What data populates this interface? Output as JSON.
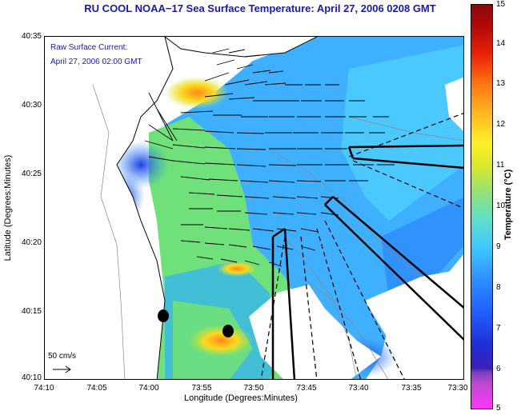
{
  "title": "RU COOL  NOAA−17  Sea Surface Temperature:  April 27, 2006 0208 GMT",
  "annotation": {
    "line1": "Raw Surface Current:",
    "line2": "April 27, 2006 02:00 GMT"
  },
  "axes": {
    "xlabel": "Longitude (Degrees:Minutes)",
    "ylabel": "Latitude (Degrees:Minutes)",
    "xticks": [
      "74:10",
      "74:05",
      "74:00",
      "73:55",
      "73:50",
      "73:45",
      "73:40",
      "73:35",
      "73:30"
    ],
    "yticks": [
      "40:35",
      "40:30",
      "40:25",
      "40:20",
      "40:15",
      "40:10"
    ]
  },
  "scale": {
    "label": "50 cm/s"
  },
  "colorbar": {
    "label": "Temperature (°C)",
    "ticks": [
      "15",
      "14",
      "13",
      "12",
      "11",
      "10",
      "9",
      "8",
      "7",
      "6",
      "5"
    ]
  },
  "colors": {
    "title": "#1a1aa0",
    "land": "#ffffff",
    "coast": "#000000"
  }
}
